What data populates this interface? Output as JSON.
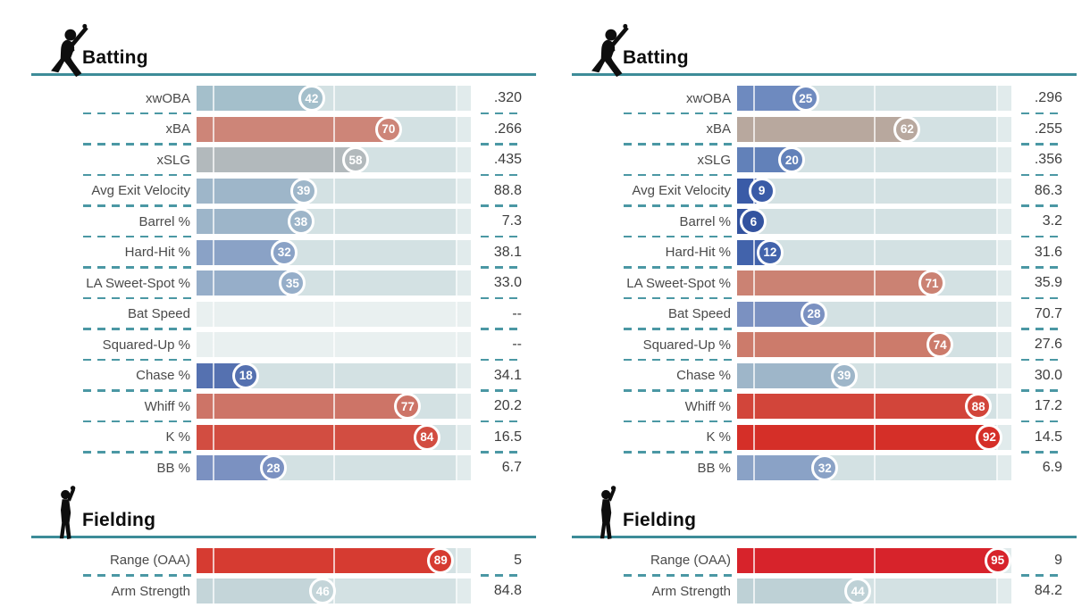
{
  "colors": {
    "header_line": "#3d8c98",
    "row_separator": "#4b98a4",
    "bar_track": "#d3e1e3",
    "bar_track_end_segment": "#e1ebec",
    "empty_bar_track": "#e9f0f0",
    "label_text": "#4a4a4a",
    "value_text": "#3d3d3d",
    "title_text": "#0d0d0d",
    "icon_silhouette": "#0e0e0e",
    "bubble_text": "#ffffff"
  },
  "chart_data": {
    "type": "bar",
    "subtype": "percentile-rankings",
    "scale": {
      "min": 0,
      "max": 100,
      "tick_marks_pct": [
        6,
        50,
        95
      ]
    },
    "legend": "bubble number = percentile (0-100, blue=low, gray=mid, red=high); right column = raw stat value",
    "panels": [
      {
        "sections": [
          {
            "title": "Batting",
            "icon": "batter-icon",
            "rows": [
              {
                "label": "xwOBA",
                "pct": 42,
                "value": ".320",
                "color": "#a4bfcb"
              },
              {
                "label": "xBA",
                "pct": 70,
                "value": ".266",
                "color": "#cd8578"
              },
              {
                "label": "xSLG",
                "pct": 58,
                "value": ".435",
                "color": "#b2b9bc"
              },
              {
                "label": "Avg Exit Velocity",
                "pct": 39,
                "value": "88.8",
                "color": "#9eb6c9"
              },
              {
                "label": "Barrel %",
                "pct": 38,
                "value": "7.3",
                "color": "#9db5c9"
              },
              {
                "label": "Hard-Hit %",
                "pct": 32,
                "value": "38.1",
                "color": "#8aa2c6"
              },
              {
                "label": "LA Sweet-Spot %",
                "pct": 35,
                "value": "33.0",
                "color": "#96aec9"
              },
              {
                "label": "Bat Speed",
                "pct": null,
                "value": "--",
                "color": null
              },
              {
                "label": "Squared-Up %",
                "pct": null,
                "value": "--",
                "color": null
              },
              {
                "label": "Chase %",
                "pct": 18,
                "value": "34.1",
                "color": "#5571b0"
              },
              {
                "label": "Whiff %",
                "pct": 77,
                "value": "20.2",
                "color": "#cd7467"
              },
              {
                "label": "K %",
                "pct": 84,
                "value": "16.5",
                "color": "#d24d41"
              },
              {
                "label": "BB %",
                "pct": 28,
                "value": "6.7",
                "color": "#7b91c1"
              }
            ]
          },
          {
            "title": "Fielding",
            "icon": "fielder-icon",
            "rows": [
              {
                "label": "Range (OAA)",
                "pct": 89,
                "value": "5",
                "color": "#d63b31"
              },
              {
                "label": "Arm Strength",
                "pct": 46,
                "value": "84.8",
                "color": "#c4d5d9"
              }
            ]
          }
        ]
      },
      {
        "sections": [
          {
            "title": "Batting",
            "icon": "batter-icon",
            "rows": [
              {
                "label": "xwOBA",
                "pct": 25,
                "value": ".296",
                "color": "#6e8abf"
              },
              {
                "label": "xBA",
                "pct": 62,
                "value": ".255",
                "color": "#b8a89e"
              },
              {
                "label": "xSLG",
                "pct": 20,
                "value": ".356",
                "color": "#6281b9"
              },
              {
                "label": "Avg Exit Velocity",
                "pct": 9,
                "value": "86.3",
                "color": "#3a5ba7"
              },
              {
                "label": "Barrel %",
                "pct": 6,
                "value": "3.2",
                "color": "#33539f"
              },
              {
                "label": "Hard-Hit %",
                "pct": 12,
                "value": "31.6",
                "color": "#4263ab"
              },
              {
                "label": "LA Sweet-Spot %",
                "pct": 71,
                "value": "35.9",
                "color": "#cb8273"
              },
              {
                "label": "Bat Speed",
                "pct": 28,
                "value": "70.7",
                "color": "#7b91c1"
              },
              {
                "label": "Squared-Up %",
                "pct": 74,
                "value": "27.6",
                "color": "#cc7b6b"
              },
              {
                "label": "Chase %",
                "pct": 39,
                "value": "30.0",
                "color": "#9eb6c9"
              },
              {
                "label": "Whiff %",
                "pct": 88,
                "value": "17.2",
                "color": "#d2453a"
              },
              {
                "label": "K %",
                "pct": 92,
                "value": "14.5",
                "color": "#d52f28"
              },
              {
                "label": "BB %",
                "pct": 32,
                "value": "6.9",
                "color": "#8aa2c6"
              }
            ]
          },
          {
            "title": "Fielding",
            "icon": "fielder-icon",
            "rows": [
              {
                "label": "Range (OAA)",
                "pct": 95,
                "value": "9",
                "color": "#d7232b"
              },
              {
                "label": "Arm Strength",
                "pct": 44,
                "value": "84.2",
                "color": "#bed1d6"
              }
            ]
          }
        ]
      }
    ]
  }
}
